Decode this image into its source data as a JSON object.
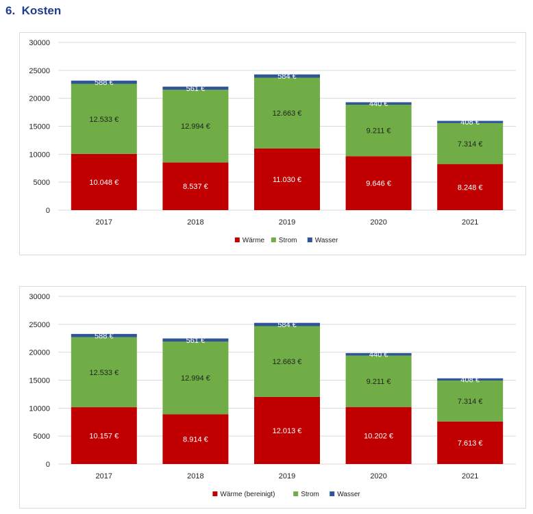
{
  "page": {
    "section_number": "6.",
    "section_title": "Kosten"
  },
  "colors": {
    "waerme": "#c00000",
    "strom": "#70ad47",
    "wasser": "#2f5597",
    "grid": "#d9d9d9",
    "text_dark": "#222222",
    "text_light": "#ffffff"
  },
  "chart_data": [
    {
      "type": "bar",
      "stacked": true,
      "categories": [
        "2017",
        "2018",
        "2019",
        "2020",
        "2021"
      ],
      "series": [
        {
          "name": "Wärme",
          "values": [
            10048,
            8537,
            11030,
            9646,
            8248
          ],
          "labels": [
            "10.048 €",
            "8.537 €",
            "11.030 €",
            "9.646 €",
            "8.248 €"
          ]
        },
        {
          "name": "Strom",
          "values": [
            12533,
            12994,
            12663,
            9211,
            7314
          ],
          "labels": [
            "12.533 €",
            "12.994 €",
            "12.663 €",
            "9.211 €",
            "7.314 €"
          ]
        },
        {
          "name": "Wasser",
          "values": [
            588,
            561,
            584,
            440,
            408
          ],
          "labels": [
            "588 €",
            "561 €",
            "584 €",
            "440 €",
            "408 €"
          ]
        }
      ],
      "yticks": [
        "0",
        "5000",
        "10000",
        "15000",
        "20000",
        "25000",
        "30000"
      ],
      "ylim": [
        0,
        30000
      ],
      "grid": true,
      "legend": "bottom"
    },
    {
      "type": "bar",
      "stacked": true,
      "categories": [
        "2017",
        "2018",
        "2019",
        "2020",
        "2021"
      ],
      "series": [
        {
          "name": "Wärme (bereinigt)",
          "values": [
            10157,
            8914,
            12013,
            10202,
            7613
          ],
          "labels": [
            "10.157 €",
            "8.914 €",
            "12.013 €",
            "10.202 €",
            "7.613 €"
          ]
        },
        {
          "name": "Strom",
          "values": [
            12533,
            12994,
            12663,
            9211,
            7314
          ],
          "labels": [
            "12.533 €",
            "12.994 €",
            "12.663 €",
            "9.211 €",
            "7.314 €"
          ]
        },
        {
          "name": "Wasser",
          "values": [
            588,
            561,
            584,
            440,
            408
          ],
          "labels": [
            "588 €",
            "561 €",
            "584 €",
            "440 €",
            "408 €"
          ]
        }
      ],
      "yticks": [
        "0",
        "5000",
        "10000",
        "15000",
        "20000",
        "25000",
        "30000"
      ],
      "ylim": [
        0,
        30000
      ],
      "grid": true,
      "legend": "bottom"
    }
  ]
}
